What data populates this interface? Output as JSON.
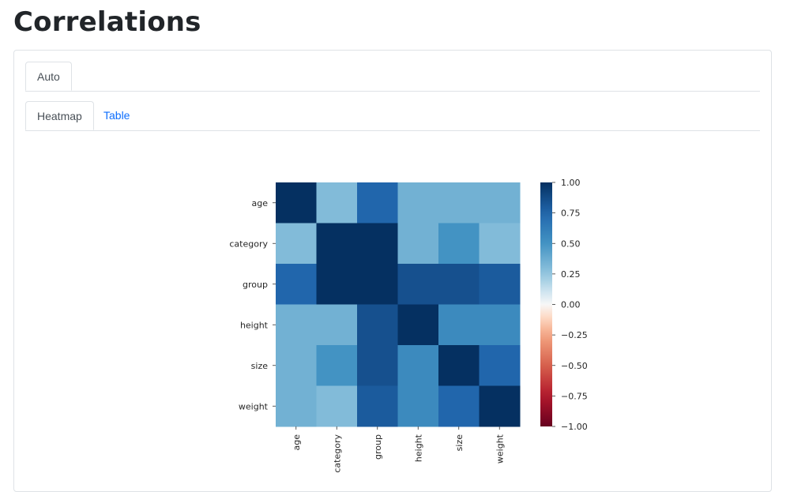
{
  "page": {
    "title": "Correlations"
  },
  "tabs_outer": [
    {
      "label": "Auto",
      "active": true
    }
  ],
  "tabs_inner": [
    {
      "label": "Heatmap",
      "active": true
    },
    {
      "label": "Table",
      "active": false
    }
  ],
  "colors": {
    "link": "#0d6efd",
    "border": "#dee2e6",
    "text": "#212529"
  },
  "chart_data": {
    "type": "heatmap",
    "title": "",
    "rows": [
      "age",
      "category",
      "group",
      "height",
      "size",
      "weight"
    ],
    "columns": [
      "age",
      "category",
      "group",
      "height",
      "size",
      "weight"
    ],
    "values": [
      [
        1.0,
        0.3,
        0.75,
        0.35,
        0.35,
        0.35
      ],
      [
        0.3,
        1.0,
        1.0,
        0.35,
        0.5,
        0.3
      ],
      [
        0.75,
        1.0,
        1.0,
        0.85,
        0.85,
        0.8
      ],
      [
        0.35,
        0.35,
        0.85,
        1.0,
        0.55,
        0.55
      ],
      [
        0.35,
        0.5,
        0.85,
        0.55,
        1.0,
        0.75
      ],
      [
        0.35,
        0.3,
        0.8,
        0.55,
        0.75,
        1.0
      ]
    ],
    "colormap": "RdBu",
    "vmin": -1.0,
    "vmax": 1.0,
    "colorbar_ticks": [
      "1.00",
      "0.75",
      "0.50",
      "0.25",
      "0.00",
      "−0.25",
      "−0.50",
      "−0.75",
      "−1.00"
    ],
    "colorbar_tick_values": [
      1.0,
      0.75,
      0.5,
      0.25,
      0.0,
      -0.25,
      -0.5,
      -0.75,
      -1.0
    ]
  }
}
